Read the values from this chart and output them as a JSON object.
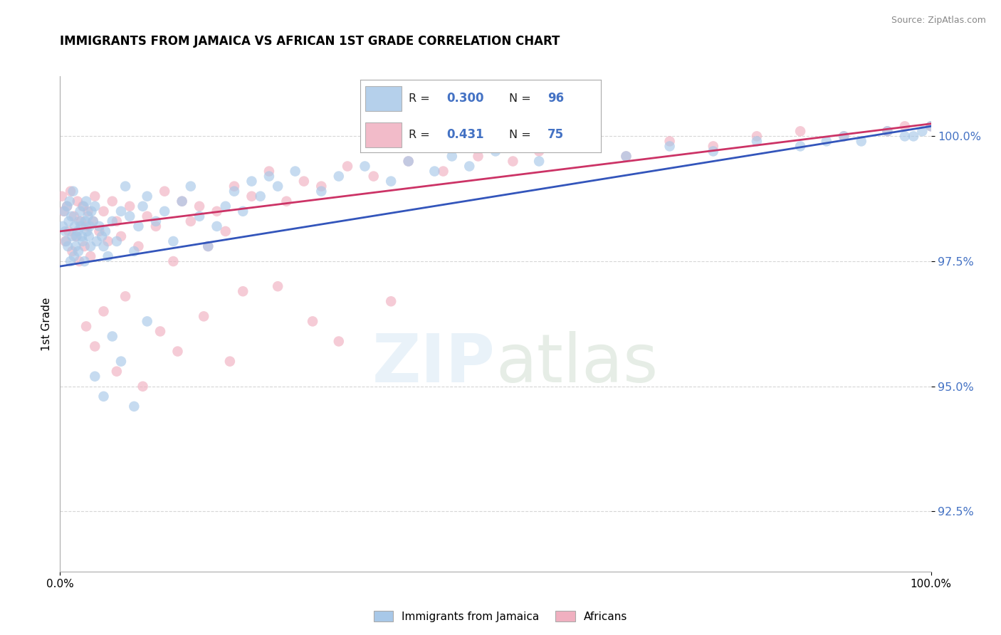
{
  "title": "IMMIGRANTS FROM JAMAICA VS AFRICAN 1ST GRADE CORRELATION CHART",
  "source": "Source: ZipAtlas.com",
  "ylabel": "1st Grade",
  "ytick_values": [
    92.5,
    95.0,
    97.5,
    100.0
  ],
  "legend_label1": "Immigrants from Jamaica",
  "legend_label2": "Africans",
  "R1": 0.3,
  "N1": 96,
  "R2": 0.431,
  "N2": 75,
  "xlim": [
    0.0,
    100.0
  ],
  "ylim": [
    91.3,
    101.2
  ],
  "blue_color": "#a8c8e8",
  "pink_color": "#f0b0c0",
  "blue_line_color": "#3355bb",
  "pink_line_color": "#cc3366",
  "blue_points_x": [
    0.3,
    0.5,
    0.6,
    0.7,
    0.8,
    0.9,
    1.0,
    1.1,
    1.2,
    1.3,
    1.4,
    1.5,
    1.6,
    1.7,
    1.8,
    1.9,
    2.0,
    2.1,
    2.2,
    2.3,
    2.4,
    2.5,
    2.6,
    2.7,
    2.8,
    2.9,
    3.0,
    3.1,
    3.2,
    3.3,
    3.4,
    3.5,
    3.6,
    3.8,
    4.0,
    4.2,
    4.5,
    4.8,
    5.0,
    5.2,
    5.5,
    6.0,
    6.5,
    7.0,
    7.5,
    8.0,
    8.5,
    9.0,
    9.5,
    10.0,
    11.0,
    12.0,
    13.0,
    14.0,
    15.0,
    16.0,
    17.0,
    18.0,
    19.0,
    20.0,
    21.0,
    22.0,
    23.0,
    24.0,
    25.0,
    27.0,
    30.0,
    32.0,
    35.0,
    38.0,
    40.0,
    43.0,
    45.0,
    47.0,
    50.0,
    55.0,
    60.0,
    65.0,
    70.0,
    75.0,
    80.0,
    85.0,
    88.0,
    90.0,
    92.0,
    95.0,
    97.0,
    98.0,
    99.0,
    100.0,
    4.0,
    5.0,
    6.0,
    7.0,
    8.5,
    10.0
  ],
  "blue_points_y": [
    98.2,
    98.5,
    98.1,
    97.9,
    98.6,
    97.8,
    98.3,
    98.7,
    97.5,
    98.4,
    98.0,
    98.9,
    97.6,
    98.2,
    97.8,
    98.0,
    98.1,
    97.7,
    98.3,
    98.5,
    98.2,
    98.0,
    97.9,
    98.6,
    97.5,
    98.3,
    98.7,
    98.1,
    98.4,
    98.0,
    98.2,
    97.8,
    98.5,
    98.3,
    98.6,
    97.9,
    98.2,
    98.0,
    97.8,
    98.1,
    97.6,
    98.3,
    97.9,
    98.5,
    99.0,
    98.4,
    97.7,
    98.2,
    98.6,
    98.8,
    98.3,
    98.5,
    97.9,
    98.7,
    99.0,
    98.4,
    97.8,
    98.2,
    98.6,
    98.9,
    98.5,
    99.1,
    98.8,
    99.2,
    99.0,
    99.3,
    98.9,
    99.2,
    99.4,
    99.1,
    99.5,
    99.3,
    99.6,
    99.4,
    99.7,
    99.5,
    99.8,
    99.6,
    99.8,
    99.7,
    99.9,
    99.8,
    99.9,
    100.0,
    99.9,
    100.1,
    100.0,
    100.0,
    100.1,
    100.2,
    95.2,
    94.8,
    96.0,
    95.5,
    94.6,
    96.3
  ],
  "pink_points_x": [
    0.2,
    0.4,
    0.6,
    0.8,
    1.0,
    1.2,
    1.4,
    1.6,
    1.8,
    2.0,
    2.2,
    2.4,
    2.6,
    2.8,
    3.0,
    3.2,
    3.5,
    3.8,
    4.0,
    4.5,
    5.0,
    5.5,
    6.0,
    6.5,
    7.0,
    8.0,
    9.0,
    10.0,
    11.0,
    12.0,
    13.0,
    14.0,
    15.0,
    16.0,
    17.0,
    18.0,
    19.0,
    20.0,
    22.0,
    24.0,
    26.0,
    28.0,
    30.0,
    33.0,
    36.0,
    40.0,
    44.0,
    48.0,
    52.0,
    55.0,
    60.0,
    65.0,
    70.0,
    75.0,
    80.0,
    85.0,
    90.0,
    95.0,
    97.0,
    100.0,
    3.0,
    4.0,
    5.0,
    6.5,
    7.5,
    9.5,
    11.5,
    13.5,
    16.5,
    19.5,
    21.0,
    25.0,
    29.0,
    32.0,
    38.0
  ],
  "pink_points_y": [
    98.8,
    98.5,
    97.9,
    98.6,
    98.1,
    98.9,
    97.7,
    98.4,
    98.0,
    98.7,
    97.5,
    98.3,
    98.6,
    97.8,
    98.2,
    98.5,
    97.6,
    98.3,
    98.8,
    98.1,
    98.5,
    97.9,
    98.7,
    98.3,
    98.0,
    98.6,
    97.8,
    98.4,
    98.2,
    98.9,
    97.5,
    98.7,
    98.3,
    98.6,
    97.8,
    98.5,
    98.1,
    99.0,
    98.8,
    99.3,
    98.7,
    99.1,
    99.0,
    99.4,
    99.2,
    99.5,
    99.3,
    99.6,
    99.5,
    99.7,
    99.8,
    99.6,
    99.9,
    99.8,
    100.0,
    100.1,
    100.0,
    100.1,
    100.2,
    100.2,
    96.2,
    95.8,
    96.5,
    95.3,
    96.8,
    95.0,
    96.1,
    95.7,
    96.4,
    95.5,
    96.9,
    97.0,
    96.3,
    95.9,
    96.7
  ]
}
